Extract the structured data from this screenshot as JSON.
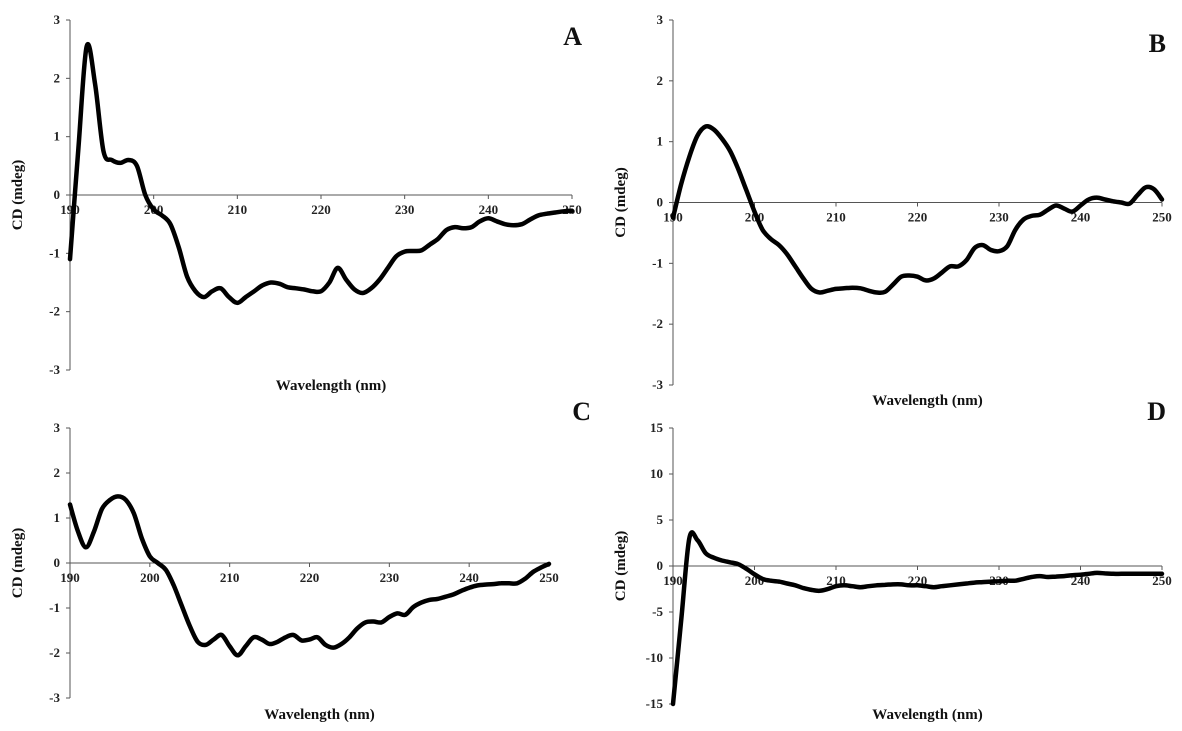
{
  "chart_data": [
    {
      "type": "line",
      "panel_label": "A",
      "xlabel": "Wavelength (nm)",
      "ylabel": "CD (mdeg)",
      "xlim": [
        190,
        250
      ],
      "ylim": [
        -3,
        3
      ],
      "xticks": [
        190,
        200,
        210,
        220,
        230,
        240,
        250
      ],
      "yticks": [
        3,
        2,
        1,
        0,
        -1,
        -2,
        -3
      ],
      "series": [
        {
          "x": [
            190,
            191,
            192,
            193,
            194,
            195,
            196,
            197,
            198,
            199,
            200,
            201,
            202,
            203,
            204,
            205,
            206,
            207,
            208,
            209,
            210,
            211,
            212,
            213,
            214,
            215,
            216,
            217,
            218,
            219,
            220,
            221,
            222,
            223,
            224,
            225,
            226,
            227,
            228,
            229,
            230,
            231,
            232,
            233,
            234,
            235,
            236,
            237,
            238,
            239,
            240,
            241,
            242,
            243,
            244,
            245,
            246,
            247,
            248,
            249,
            250
          ],
          "y": [
            -1.1,
            0.8,
            2.55,
            1.9,
            0.75,
            0.6,
            0.55,
            0.6,
            0.5,
            0.0,
            -0.25,
            -0.35,
            -0.5,
            -0.9,
            -1.4,
            -1.65,
            -1.75,
            -1.65,
            -1.6,
            -1.75,
            -1.85,
            -1.75,
            -1.65,
            -1.55,
            -1.5,
            -1.52,
            -1.58,
            -1.6,
            -1.62,
            -1.65,
            -1.65,
            -1.5,
            -1.25,
            -1.45,
            -1.62,
            -1.68,
            -1.6,
            -1.45,
            -1.25,
            -1.05,
            -0.97,
            -0.96,
            -0.95,
            -0.85,
            -0.75,
            -0.6,
            -0.55,
            -0.57,
            -0.55,
            -0.45,
            -0.4,
            -0.45,
            -0.5,
            -0.52,
            -0.5,
            -0.42,
            -0.35,
            -0.32,
            -0.3,
            -0.28,
            -0.27
          ]
        }
      ]
    },
    {
      "type": "line",
      "panel_label": "B",
      "xlabel": "Wavelength (nm)",
      "ylabel": "CD (mdeg)",
      "xlim": [
        190,
        250
      ],
      "ylim": [
        -3,
        3
      ],
      "xticks": [
        190,
        200,
        210,
        220,
        230,
        240,
        250
      ],
      "yticks": [
        3,
        2,
        1,
        0,
        -1,
        -2,
        -3
      ],
      "series": [
        {
          "x": [
            190,
            191,
            192,
            193,
            194,
            195,
            196,
            197,
            198,
            199,
            200,
            201,
            202,
            203,
            204,
            205,
            206,
            207,
            208,
            209,
            210,
            211,
            212,
            213,
            214,
            215,
            216,
            217,
            218,
            219,
            220,
            221,
            222,
            223,
            224,
            225,
            226,
            227,
            228,
            229,
            230,
            231,
            232,
            233,
            234,
            235,
            236,
            237,
            238,
            239,
            240,
            241,
            242,
            243,
            244,
            245,
            246,
            247,
            248,
            249,
            250
          ],
          "y": [
            -0.25,
            0.3,
            0.75,
            1.1,
            1.25,
            1.2,
            1.05,
            0.85,
            0.55,
            0.2,
            -0.15,
            -0.45,
            -0.6,
            -0.7,
            -0.85,
            -1.05,
            -1.25,
            -1.42,
            -1.48,
            -1.45,
            -1.42,
            -1.41,
            -1.4,
            -1.41,
            -1.45,
            -1.48,
            -1.47,
            -1.35,
            -1.22,
            -1.2,
            -1.22,
            -1.28,
            -1.25,
            -1.15,
            -1.05,
            -1.05,
            -0.95,
            -0.75,
            -0.7,
            -0.78,
            -0.8,
            -0.72,
            -0.45,
            -0.28,
            -0.22,
            -0.2,
            -0.12,
            -0.05,
            -0.1,
            -0.15,
            -0.05,
            0.05,
            0.08,
            0.05,
            0.02,
            0.0,
            -0.02,
            0.12,
            0.25,
            0.22,
            0.05
          ]
        }
      ]
    },
    {
      "type": "line",
      "panel_label": "C",
      "xlabel": "Wavelength (nm)",
      "ylabel": "CD (mdeg)",
      "xlim": [
        190,
        250
      ],
      "ylim": [
        -3,
        3
      ],
      "xticks": [
        190,
        200,
        210,
        220,
        230,
        240,
        250
      ],
      "yticks": [
        3,
        2,
        1,
        0,
        -1,
        -2,
        -3
      ],
      "series": [
        {
          "x": [
            190,
            191,
            192,
            193,
            194,
            195,
            196,
            197,
            198,
            199,
            200,
            201,
            202,
            203,
            204,
            205,
            206,
            207,
            208,
            209,
            210,
            211,
            212,
            213,
            214,
            215,
            216,
            217,
            218,
            219,
            220,
            221,
            222,
            223,
            224,
            225,
            226,
            227,
            228,
            229,
            230,
            231,
            232,
            233,
            234,
            235,
            236,
            237,
            238,
            239,
            240,
            241,
            242,
            243,
            244,
            245,
            246,
            247,
            248,
            249,
            250
          ],
          "y": [
            1.3,
            0.7,
            0.35,
            0.7,
            1.2,
            1.4,
            1.48,
            1.4,
            1.1,
            0.55,
            0.15,
            0.0,
            -0.15,
            -0.5,
            -0.95,
            -1.4,
            -1.75,
            -1.82,
            -1.7,
            -1.6,
            -1.85,
            -2.05,
            -1.85,
            -1.65,
            -1.7,
            -1.8,
            -1.75,
            -1.65,
            -1.6,
            -1.72,
            -1.7,
            -1.65,
            -1.82,
            -1.88,
            -1.8,
            -1.65,
            -1.45,
            -1.32,
            -1.3,
            -1.32,
            -1.2,
            -1.12,
            -1.15,
            -0.98,
            -0.88,
            -0.82,
            -0.8,
            -0.75,
            -0.7,
            -0.62,
            -0.55,
            -0.5,
            -0.48,
            -0.47,
            -0.45,
            -0.45,
            -0.45,
            -0.35,
            -0.2,
            -0.1,
            -0.02
          ]
        }
      ]
    },
    {
      "type": "line",
      "panel_label": "D",
      "xlabel": "Wavelength (nm)",
      "ylabel": "CD (mdeg)",
      "xlim": [
        190,
        250
      ],
      "ylim": [
        -15,
        15
      ],
      "xticks": [
        190,
        200,
        210,
        220,
        230,
        240,
        250
      ],
      "yticks": [
        15,
        10,
        5,
        0,
        -5,
        -10,
        -15
      ],
      "series": [
        {
          "x": [
            190,
            191,
            192,
            193,
            194,
            195,
            196,
            197,
            198,
            199,
            200,
            201,
            202,
            203,
            204,
            205,
            206,
            207,
            208,
            209,
            210,
            211,
            212,
            213,
            214,
            215,
            216,
            217,
            218,
            219,
            220,
            221,
            222,
            223,
            224,
            225,
            226,
            227,
            228,
            229,
            230,
            231,
            232,
            233,
            234,
            235,
            236,
            237,
            238,
            239,
            240,
            241,
            242,
            243,
            244,
            245,
            246,
            247,
            248,
            249,
            250
          ],
          "y": [
            -15.0,
            -6.0,
            3.0,
            2.8,
            1.4,
            0.9,
            0.6,
            0.4,
            0.2,
            -0.3,
            -0.9,
            -1.4,
            -1.6,
            -1.7,
            -1.9,
            -2.1,
            -2.4,
            -2.6,
            -2.7,
            -2.5,
            -2.2,
            -2.1,
            -2.2,
            -2.3,
            -2.2,
            -2.1,
            -2.05,
            -2.0,
            -2.0,
            -2.1,
            -2.1,
            -2.2,
            -2.3,
            -2.2,
            -2.1,
            -2.0,
            -1.9,
            -1.8,
            -1.75,
            -1.7,
            -1.65,
            -1.6,
            -1.6,
            -1.4,
            -1.2,
            -1.1,
            -1.2,
            -1.15,
            -1.1,
            -1.0,
            -0.95,
            -0.85,
            -0.75,
            -0.8,
            -0.85,
            -0.85,
            -0.85,
            -0.85,
            -0.85,
            -0.85,
            -0.85
          ]
        }
      ]
    }
  ]
}
